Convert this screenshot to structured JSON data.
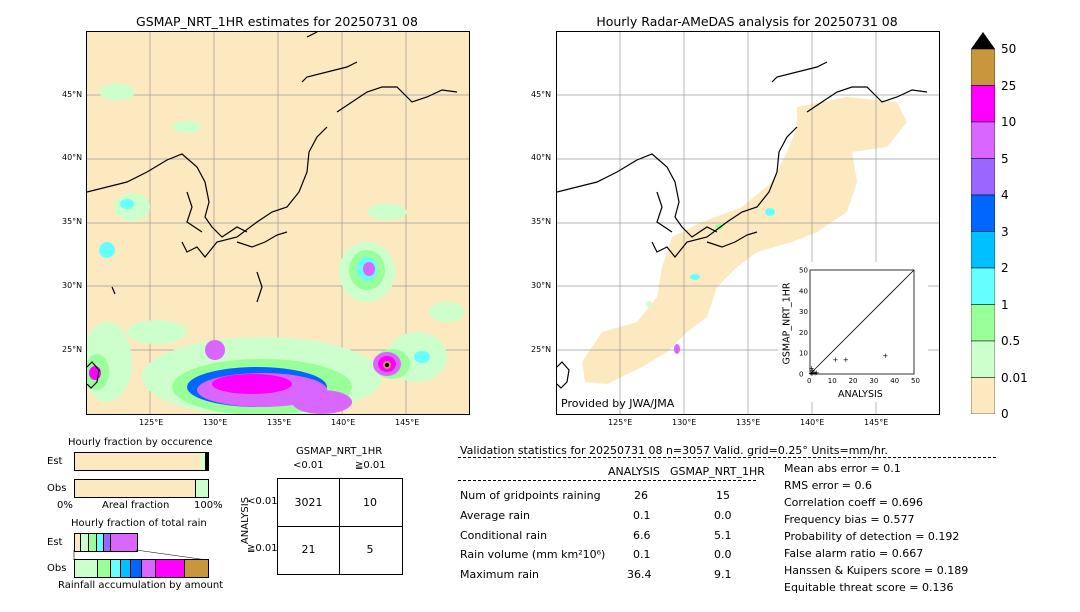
{
  "left_map": {
    "title": "GSMAP_NRT_1HR estimates for 20250731 08",
    "lat_ticks": [
      "45°N",
      "40°N",
      "35°N",
      "30°N",
      "25°N"
    ],
    "lon_ticks": [
      "125°E",
      "130°E",
      "135°E",
      "140°E",
      "145°E"
    ]
  },
  "right_map": {
    "title": "Hourly Radar-AMeDAS analysis for 20250731 08",
    "lat_ticks": [
      "45°N",
      "40°N",
      "35°N",
      "30°N",
      "25°N"
    ],
    "lon_ticks": [
      "125°E",
      "130°E",
      "135°E",
      "140°E",
      "145°E"
    ],
    "credit": "Provided by JWA/JMA"
  },
  "scatter_inset": {
    "xlabel": "ANALYSIS",
    "ylabel": "GSMAP_NRT_1HR",
    "ticks": [
      "0",
      "10",
      "20",
      "30",
      "40",
      "50"
    ]
  },
  "colorbar": {
    "labels": [
      "50",
      "25",
      "10",
      "5",
      "4",
      "3",
      "2",
      "1",
      "0.5",
      "0.01",
      "0"
    ],
    "colors": [
      "#c8963c",
      "#ff00ff",
      "#d966ff",
      "#9966ff",
      "#0066ff",
      "#00c0ff",
      "#66ffff",
      "#99ff99",
      "#ccffcc",
      "#fde9c0"
    ]
  },
  "fraction_occurrence": {
    "title": "Hourly fraction by occurence",
    "row_est": "Est",
    "row_obs": "Obs",
    "axis_left": "0%",
    "axis_mid": "Areal fraction",
    "axis_right": "100%"
  },
  "fraction_total": {
    "title": "Hourly fraction of total rain",
    "row_est": "Est",
    "row_obs": "Obs",
    "footer": "Rainfall accumulation by amount"
  },
  "contingency": {
    "title": "GSMAP_NRT_1HR",
    "col_lt": "<0.01",
    "col_ge": "≧0.01",
    "row_axis": "ANALYSIS",
    "row_lt": "<0.01",
    "row_ge": "≧0.01",
    "a": "3021",
    "b": "10",
    "c": "21",
    "d": "5"
  },
  "validation": {
    "header": "Validation statistics for 20250731 08  n=3057 Valid. grid=0.25° Units=mm/hr.",
    "col_analysis": "ANALYSIS",
    "col_gsmap": "GSMAP_NRT_1HR",
    "rows": [
      {
        "label": "Num of gridpoints raining",
        "analysis": "26",
        "gsmap": "15"
      },
      {
        "label": "Average rain",
        "analysis": "0.1",
        "gsmap": "0.0"
      },
      {
        "label": "Conditional rain",
        "analysis": "6.6",
        "gsmap": "5.1"
      },
      {
        "label": "Rain volume (mm km²10⁶)",
        "analysis": "0.1",
        "gsmap": "0.0"
      },
      {
        "label": "Maximum rain",
        "analysis": "36.4",
        "gsmap": "9.1"
      }
    ],
    "scores": [
      "Mean abs error =    0.1",
      "RMS error =    0.6",
      "Correlation coeff =  0.696",
      "Frequency bias =  0.577",
      "Probability of detection =  0.192",
      "False alarm ratio =  0.667",
      "Hanssen & Kuipers score =  0.189",
      "Equitable threat score =  0.136"
    ]
  },
  "chart_data": {
    "type": "scatter",
    "xlabel": "ANALYSIS",
    "ylabel": "GSMAP_NRT_1HR",
    "xlim": [
      0,
      50
    ],
    "ylim": [
      0,
      50
    ],
    "points": [
      [
        0.3,
        0.5
      ],
      [
        0.8,
        0.2
      ],
      [
        1.5,
        1.0
      ],
      [
        2.2,
        0.4
      ],
      [
        3.0,
        0.8
      ],
      [
        0.5,
        3.0
      ],
      [
        1.0,
        1.8
      ],
      [
        12,
        7
      ],
      [
        17,
        7
      ],
      [
        36,
        9
      ]
    ]
  }
}
